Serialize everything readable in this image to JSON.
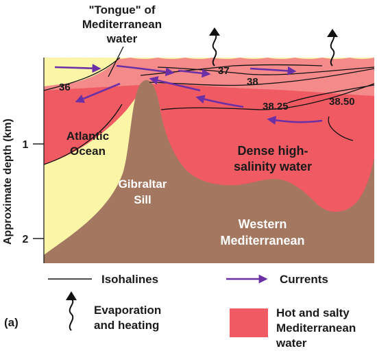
{
  "title_lines": [
    "\"Tongue\" of",
    "Mediterranean",
    "water"
  ],
  "regions": {
    "atlantic": [
      "Atlantic",
      "Ocean"
    ],
    "dense": [
      "Dense high-",
      "salinity water"
    ],
    "sill": [
      "Gibraltar",
      "Sill"
    ],
    "western": [
      "Western",
      "Mediterranean"
    ]
  },
  "isohalines": [
    "36",
    "37",
    "38",
    "38.25",
    "38.50"
  ],
  "y_axis": {
    "label": "Approximate depth (km)",
    "ticks": [
      "1",
      "2"
    ]
  },
  "legend": {
    "isohalines": "Isohalines",
    "currents": "Currents",
    "evaporation": [
      "Evaporation",
      "and heating"
    ],
    "hot_salty": [
      "Hot and salty",
      "Mediterranean",
      "water"
    ]
  },
  "panel_label": "(a)",
  "colors": {
    "atlantic_fill": "#fbf5a8",
    "med_fill": "#ef5a63",
    "surface_fill": "#f48a8a",
    "land": "#a47860",
    "current": "#6b2fa6",
    "legend_swatch": "#ef5a63"
  },
  "icons": [
    "evaporation-arrow-icon",
    "current-arrow-icon"
  ]
}
